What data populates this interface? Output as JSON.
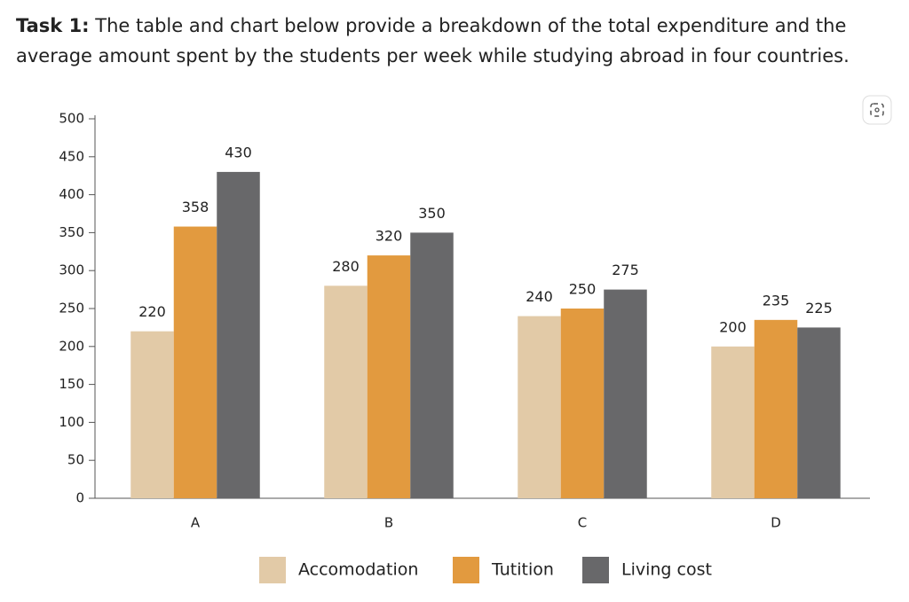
{
  "task_label": "Task 1:",
  "task_text": "The table and chart below provide a breakdown of the total expenditure and the average amount spent by the students per week while studying abroad in four countries.",
  "chart_data": {
    "type": "bar",
    "categories": [
      "A",
      "B",
      "C",
      "D"
    ],
    "series": [
      {
        "name": "Accomodation",
        "color": "#e2caa7",
        "values": [
          220,
          280,
          240,
          200
        ]
      },
      {
        "name": "Tutition",
        "color": "#e29a3f",
        "values": [
          358,
          320,
          250,
          235
        ]
      },
      {
        "name": "Living cost",
        "color": "#68686a",
        "values": [
          430,
          350,
          275,
          225
        ]
      }
    ],
    "ylim": [
      0,
      500
    ],
    "yticks": [
      0,
      50,
      100,
      150,
      200,
      250,
      300,
      350,
      400,
      450,
      500
    ],
    "legend": "bottom"
  }
}
